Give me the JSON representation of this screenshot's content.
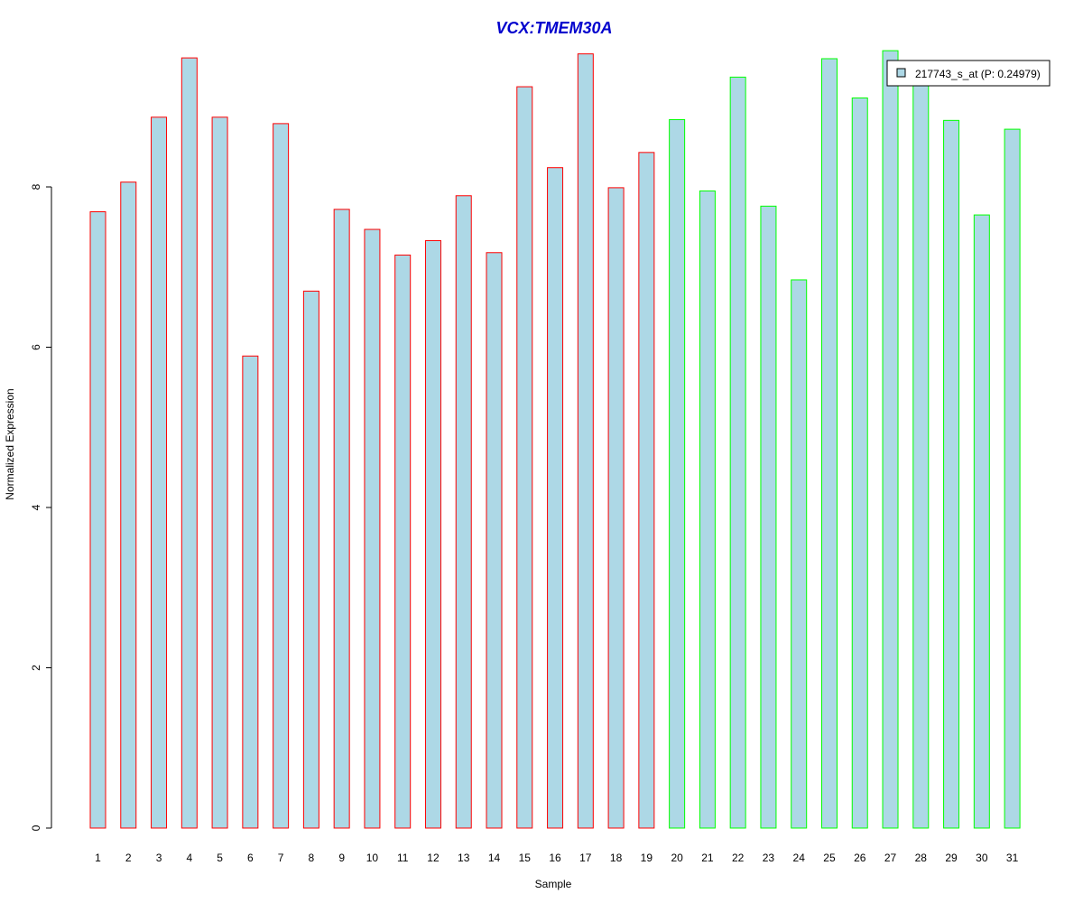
{
  "chart_data": {
    "type": "bar",
    "title": "VCX:TMEM30A",
    "xlabel": "Sample",
    "ylabel": "Normalized Expression",
    "ylim": [
      0,
      9.7
    ],
    "yticks": [
      0,
      2,
      4,
      6,
      8
    ],
    "categories": [
      "1",
      "2",
      "3",
      "4",
      "5",
      "6",
      "7",
      "8",
      "9",
      "10",
      "11",
      "12",
      "13",
      "14",
      "15",
      "16",
      "17",
      "18",
      "19",
      "20",
      "21",
      "22",
      "23",
      "24",
      "25",
      "26",
      "27",
      "28",
      "29",
      "30",
      "31"
    ],
    "series": [
      {
        "name": "217743_s_at (P: 0.24979)",
        "values": [
          7.69,
          8.06,
          8.87,
          9.61,
          8.87,
          5.89,
          8.79,
          6.7,
          7.72,
          7.47,
          7.15,
          7.33,
          7.89,
          7.18,
          9.25,
          8.24,
          9.66,
          7.99,
          8.43,
          8.84,
          7.95,
          9.37,
          7.76,
          6.84,
          9.6,
          9.11,
          9.7,
          9.28,
          8.83,
          7.65,
          8.72
        ]
      }
    ],
    "groups": [
      {
        "from": 1,
        "to": 19,
        "border_color": "#FF0000"
      },
      {
        "from": 20,
        "to": 31,
        "border_color": "#00FF00"
      }
    ],
    "bar_fill": "#ADD8E6",
    "title_color": "#0000CD",
    "legend": {
      "position": "top-right",
      "label": "217743_s_at (P: 0.24979)"
    },
    "grid": false
  }
}
